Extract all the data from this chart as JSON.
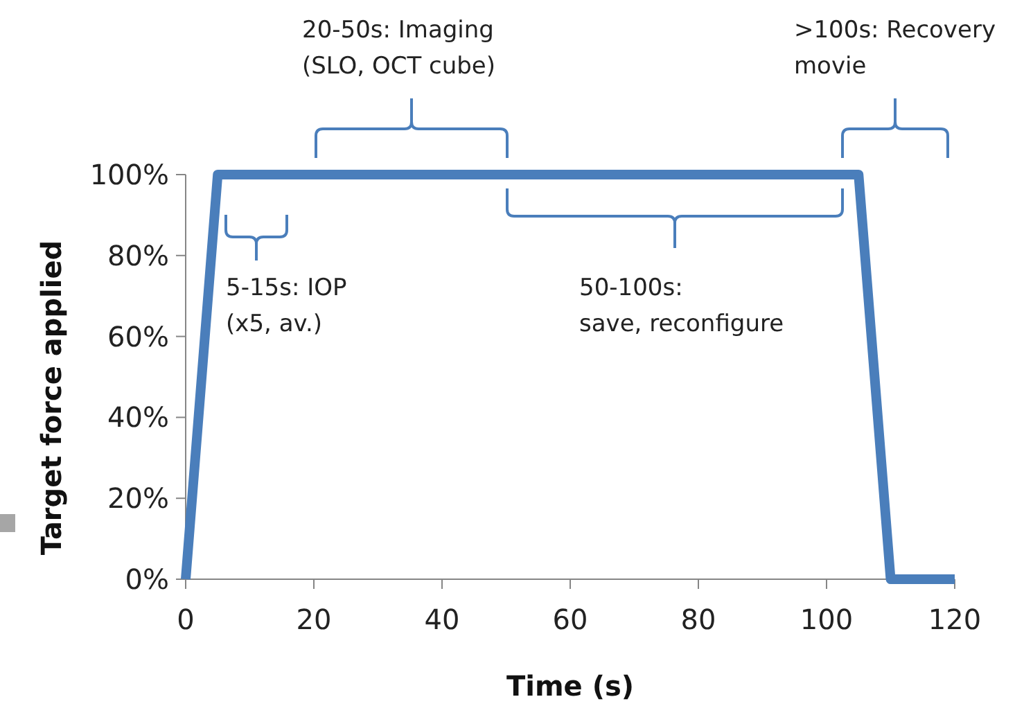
{
  "chart_data": {
    "type": "line",
    "xlabel": "Time (s)",
    "ylabel": "Target force applied",
    "x": [
      0,
      5,
      105,
      110,
      120
    ],
    "series": [
      {
        "color": "#4a7ebb",
        "values": [
          0,
          100,
          100,
          0,
          0
        ]
      }
    ],
    "xlim": [
      0,
      120
    ],
    "xticks": [
      0,
      20,
      40,
      60,
      80,
      100,
      120
    ],
    "ylim": [
      0,
      100
    ],
    "yticks": [
      {
        "value": 0,
        "label": "0%"
      },
      {
        "value": 20,
        "label": "20%"
      },
      {
        "value": 40,
        "label": "40%"
      },
      {
        "value": 60,
        "label": "60%"
      },
      {
        "value": 80,
        "label": "80%"
      },
      {
        "value": 100,
        "label": "100%"
      }
    ],
    "grid": false,
    "marker": "none",
    "line_style": "solid",
    "annotations": [
      "5-15s: IOP\n(x5, av.)",
      "20-50s: Imaging\n(SLO, OCT cube)",
      "50-100s:\nsave, reconfigure",
      ">100s: Recovery\nmovie"
    ]
  }
}
